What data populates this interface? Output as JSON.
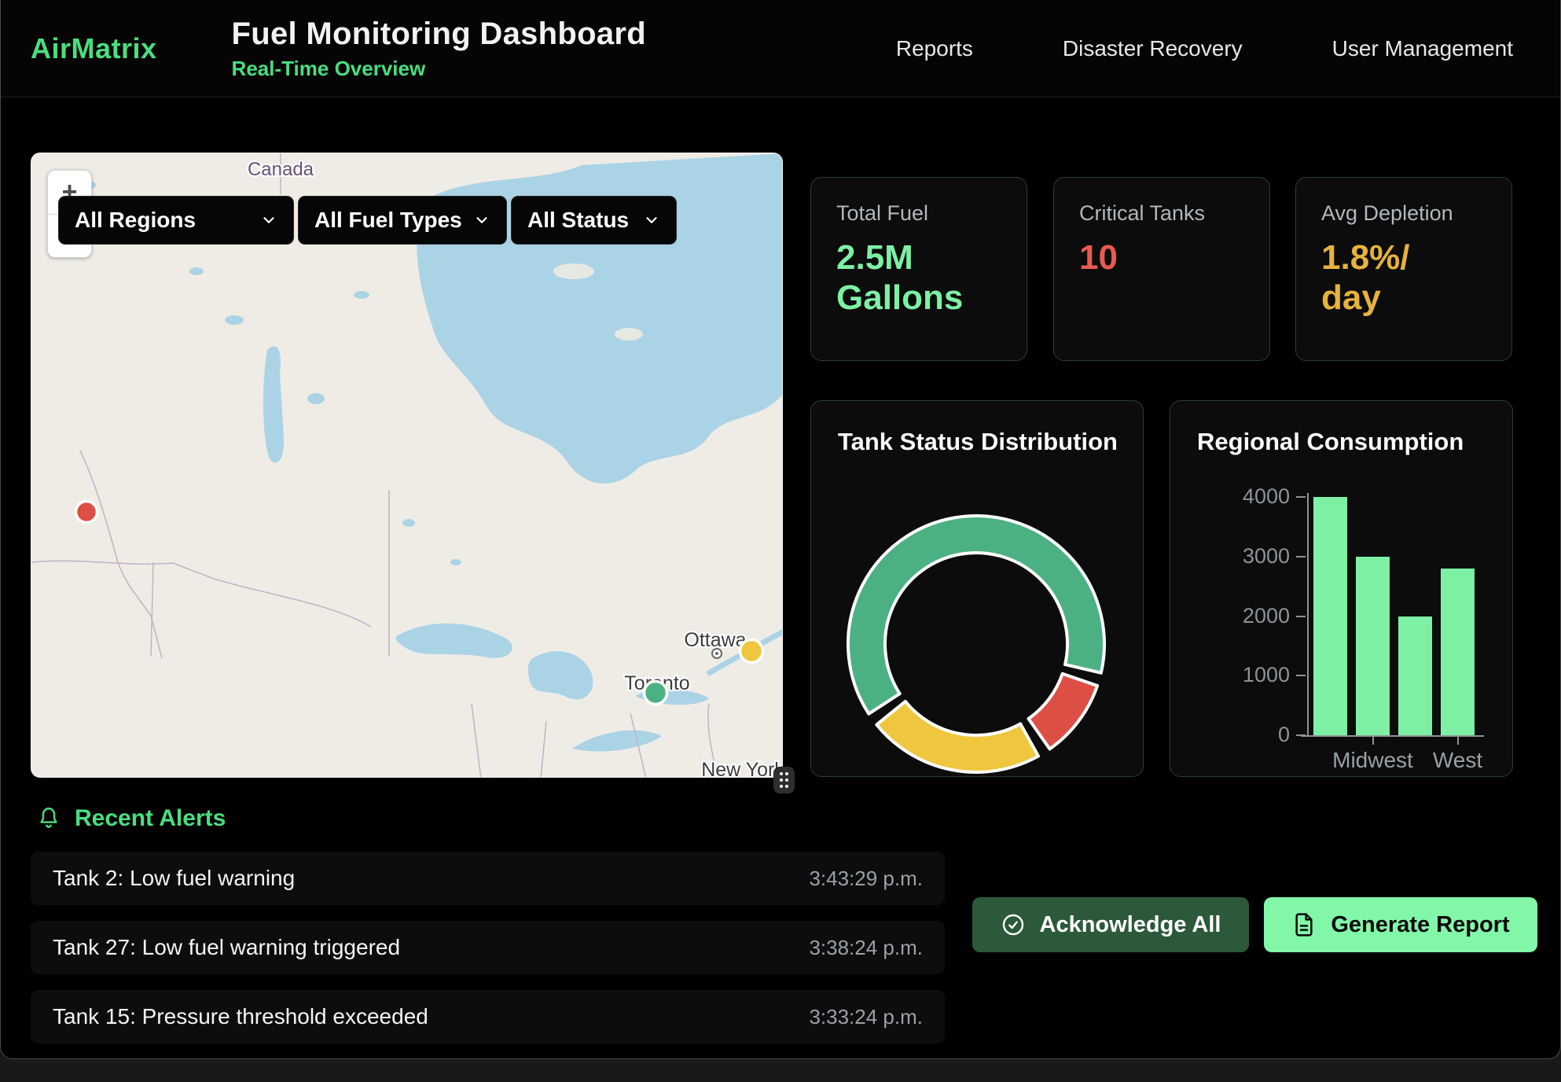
{
  "header": {
    "logo": "AirMatrix",
    "title": "Fuel Monitoring Dashboard",
    "subtitle": "Real-Time Overview",
    "nav": [
      {
        "label": "Reports"
      },
      {
        "label": "Disaster Recovery"
      },
      {
        "label": "User Management"
      }
    ]
  },
  "map": {
    "country_label": "Canada",
    "city_labels": [
      "Ottawa",
      "Toronto",
      "New York"
    ],
    "zoom_in": "+",
    "zoom_out": "−",
    "filters": [
      {
        "value": "All Regions"
      },
      {
        "value": "All Fuel Types"
      },
      {
        "value": "All Status"
      }
    ],
    "markers": [
      {
        "status": "critical",
        "color": "#dd4f44"
      },
      {
        "status": "warning",
        "color": "#efc73e"
      },
      {
        "status": "normal",
        "color": "#4cb182"
      }
    ]
  },
  "stats": [
    {
      "label": "Total Fuel",
      "value": "2.5M Gallons",
      "value_lines": [
        "2.5M",
        "Gallons"
      ],
      "color": "#7df0a4"
    },
    {
      "label": "Critical Tanks",
      "value": "10",
      "value_lines": [
        "10",
        ""
      ],
      "color": "#ea5a52"
    },
    {
      "label": "Avg Depletion",
      "value": "1.8%/day",
      "value_lines": [
        "1.8%/",
        "day"
      ],
      "color": "#e7b23d"
    }
  ],
  "chart_data": [
    {
      "type": "donut",
      "title": "Tank Status Distribution",
      "start_deg": 237,
      "gap_deg": 6,
      "segments": [
        {
          "name": "green",
          "deg": 226,
          "percent": 66,
          "color": "#4cb182"
        },
        {
          "name": "red",
          "deg": 36,
          "percent": 11,
          "color": "#dd4f44"
        },
        {
          "name": "yellow",
          "deg": 80,
          "percent": 23,
          "color": "#efc73e"
        }
      ],
      "legend": false
    },
    {
      "type": "bar",
      "title": "Regional Consumption",
      "categories": [
        "",
        "Midwest",
        "",
        "West"
      ],
      "values": [
        4000,
        3000,
        2000,
        2800
      ],
      "ylim": [
        0,
        4000
      ],
      "yticks": [
        0,
        1000,
        2000,
        3000,
        4000
      ],
      "tick_labels": [
        {
          "index": 1,
          "label": "Midwest"
        },
        {
          "index": 3,
          "label": "West"
        }
      ],
      "bar_color": "#7df0a4",
      "axis_color": "#8d939b",
      "grid": false,
      "legend_position": "none"
    }
  ],
  "alerts": {
    "title": "Recent Alerts",
    "items": [
      {
        "message": "Tank 2: Low fuel warning",
        "time": "3:43:29 p.m."
      },
      {
        "message": "Tank 27: Low fuel warning triggered",
        "time": "3:38:24 p.m."
      },
      {
        "message": "Tank 15: Pressure threshold exceeded",
        "time": "3:33:24 p.m."
      }
    ]
  },
  "actions": {
    "acknowledge_label": "Acknowledge All",
    "generate_label": "Generate Report"
  },
  "colors": {
    "accent_green": "#4ade80",
    "mint": "#7df0a4",
    "critical_red": "#ea5a52",
    "warning_amber": "#e7b23d",
    "button_dark_green": "#2b5939",
    "button_light_green": "#82f7a8"
  }
}
